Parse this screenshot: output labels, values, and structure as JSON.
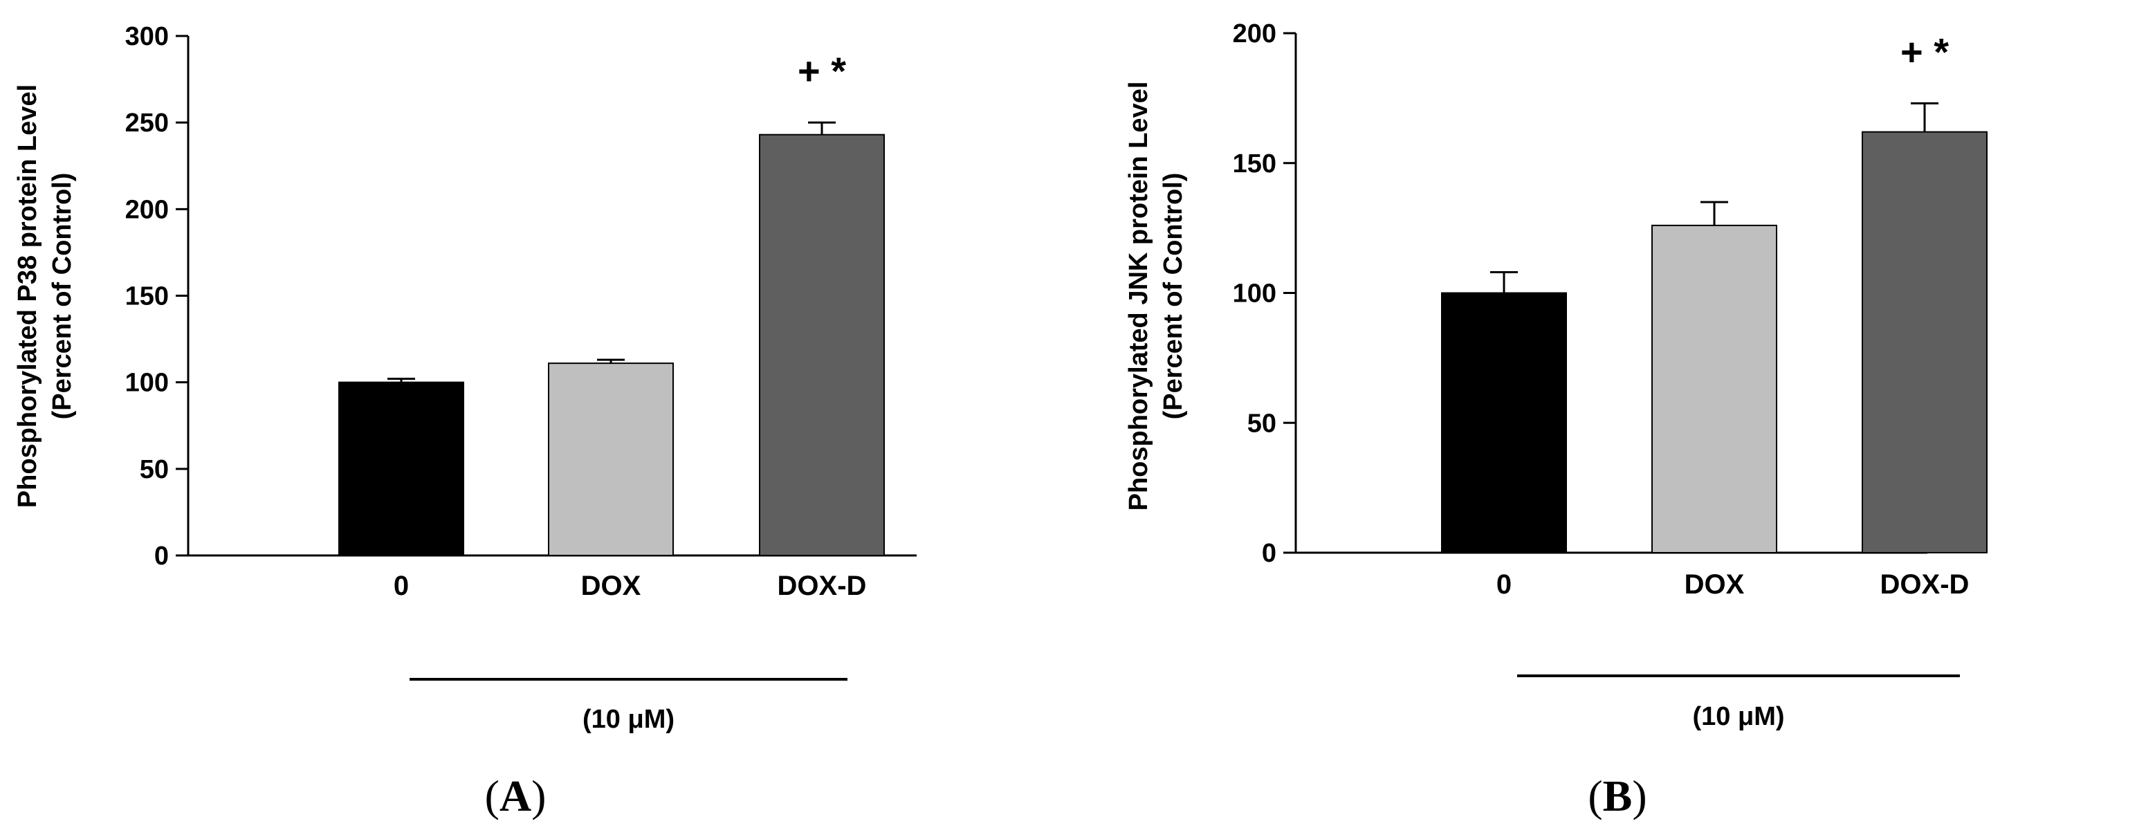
{
  "chart_data": [
    {
      "type": "bar",
      "panel": "A",
      "panel_label": {
        "open": "(",
        "letter": "A",
        "close": ")"
      },
      "ylabel_line1": "Phosphorylated P38 protein Level",
      "ylabel_line2": "(Percent of Control)",
      "ylim": [
        0,
        300
      ],
      "yticks": [
        0,
        50,
        100,
        150,
        200,
        250,
        300
      ],
      "categories": [
        "0",
        "DOX",
        "DOX-D"
      ],
      "values": [
        100,
        111,
        243
      ],
      "errors": [
        2,
        2,
        7
      ],
      "colors": [
        "#000000",
        "#bfbfbf",
        "#5f5f5f"
      ],
      "annotations": [
        "",
        "",
        "+ *"
      ],
      "concentration_label": "(10 μM)"
    },
    {
      "type": "bar",
      "panel": "B",
      "panel_label": {
        "open": "(",
        "letter": "B",
        "close": ")"
      },
      "ylabel_line1": "Phosphorylated JNK protein Level",
      "ylabel_line2": "(Percent of Control)",
      "ylim": [
        0,
        200
      ],
      "yticks": [
        0,
        50,
        100,
        150,
        200
      ],
      "categories": [
        "0",
        "DOX",
        "DOX-D"
      ],
      "values": [
        100,
        126,
        162
      ],
      "errors": [
        8,
        9,
        11
      ],
      "colors": [
        "#000000",
        "#bfbfbf",
        "#5f5f5f"
      ],
      "annotations": [
        "",
        "",
        "+ *"
      ],
      "concentration_label": "(10 μM)"
    }
  ]
}
